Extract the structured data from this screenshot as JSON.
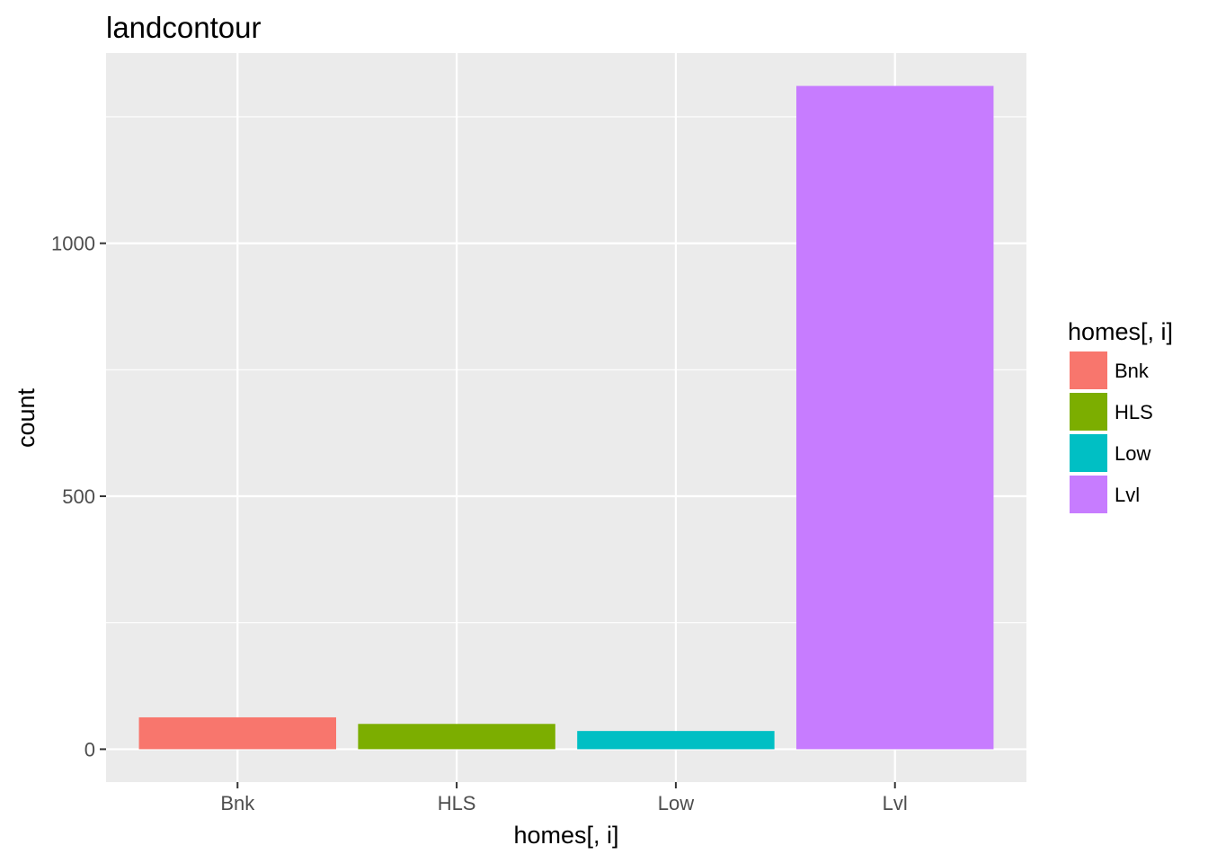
{
  "chart_data": {
    "type": "bar",
    "title": "landcontour",
    "xlabel": "homes[, i]",
    "ylabel": "count",
    "categories": [
      "Bnk",
      "HLS",
      "Low",
      "Lvl"
    ],
    "values": [
      63,
      50,
      36,
      1311
    ],
    "colors": [
      "#F8766D",
      "#7CAE00",
      "#00BFC4",
      "#C77CFF"
    ],
    "ylim": [
      -65,
      1376
    ],
    "yticks": [
      0,
      500,
      1000
    ],
    "y_minor_ticks": [
      250,
      750,
      1250
    ],
    "grid": true,
    "panel_background": "#EBEBEB",
    "grid_color": "#FFFFFF",
    "legend": {
      "title": "homes[, i]",
      "position": "right",
      "items": [
        "Bnk",
        "HLS",
        "Low",
        "Lvl"
      ]
    }
  }
}
